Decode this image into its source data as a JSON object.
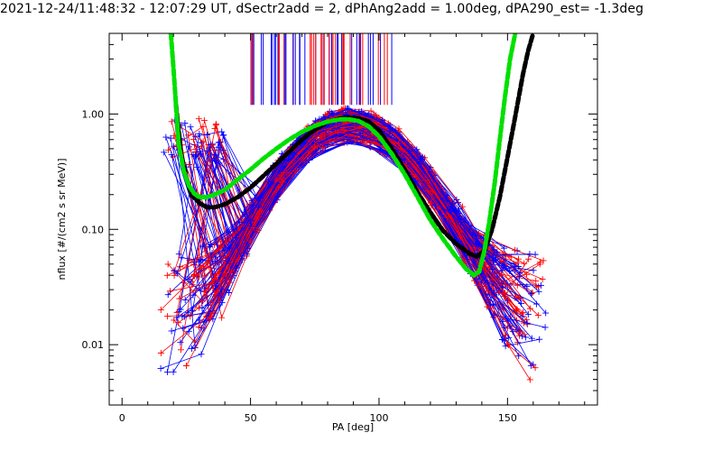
{
  "chart_data": {
    "type": "line",
    "title": "2021-12-24/11:48:32 - 12:07:29 UT, dSectr2add = 2, dPhAng2add = 1.00deg, dPA290_est=  -1.3deg",
    "xlabel": "PA [deg]",
    "ylabel": "nflux [#/(cm2 s sr MeV)]",
    "xlim": [
      -5,
      185
    ],
    "ylim": [
      0.003,
      5.0
    ],
    "yscale": "log",
    "x_ticks": [
      0,
      50,
      100,
      150
    ],
    "x_tick_labels": [
      "0",
      "50",
      "100",
      "150"
    ],
    "y_ticks": [
      0.01,
      0.1,
      1.0
    ],
    "y_tick_labels": [
      "0.01",
      "0.10",
      "1.00"
    ],
    "grid": false,
    "legend": "none",
    "series": [
      {
        "color": "#000000",
        "style": "thick-dashed",
        "x": [
          21,
          23,
          25,
          27,
          30,
          33,
          36,
          40,
          45,
          50,
          55,
          60,
          65,
          70,
          75,
          80,
          85,
          88,
          92,
          96,
          100,
          105,
          110,
          115,
          120,
          125,
          130,
          135,
          138,
          141,
          144,
          147,
          150,
          153,
          156,
          158,
          160
        ],
        "values": [
          1.2,
          0.45,
          0.28,
          0.2,
          0.17,
          0.155,
          0.155,
          0.165,
          0.19,
          0.23,
          0.29,
          0.37,
          0.47,
          0.6,
          0.73,
          0.85,
          0.92,
          0.93,
          0.92,
          0.86,
          0.72,
          0.5,
          0.33,
          0.21,
          0.14,
          0.097,
          0.075,
          0.062,
          0.058,
          0.065,
          0.1,
          0.19,
          0.42,
          0.95,
          2.2,
          3.5,
          5.0
        ]
      },
      {
        "color": "#00e000",
        "style": "thick-dashed",
        "x": [
          19,
          20,
          21,
          22,
          24,
          26,
          28,
          30,
          33,
          36,
          40,
          45,
          50,
          55,
          60,
          65,
          70,
          75,
          80,
          85,
          88,
          92,
          96,
          100,
          105,
          110,
          115,
          120,
          125,
          130,
          134,
          137,
          139,
          141,
          143,
          145,
          147,
          149,
          151,
          153
        ],
        "values": [
          5.0,
          2.5,
          1.2,
          0.55,
          0.32,
          0.24,
          0.205,
          0.19,
          0.19,
          0.2,
          0.22,
          0.27,
          0.33,
          0.41,
          0.5,
          0.6,
          0.7,
          0.79,
          0.86,
          0.9,
          0.9,
          0.87,
          0.78,
          0.64,
          0.45,
          0.3,
          0.19,
          0.12,
          0.082,
          0.058,
          0.045,
          0.04,
          0.043,
          0.065,
          0.12,
          0.25,
          0.6,
          1.4,
          3.0,
          5.0
        ]
      }
    ]
  }
}
